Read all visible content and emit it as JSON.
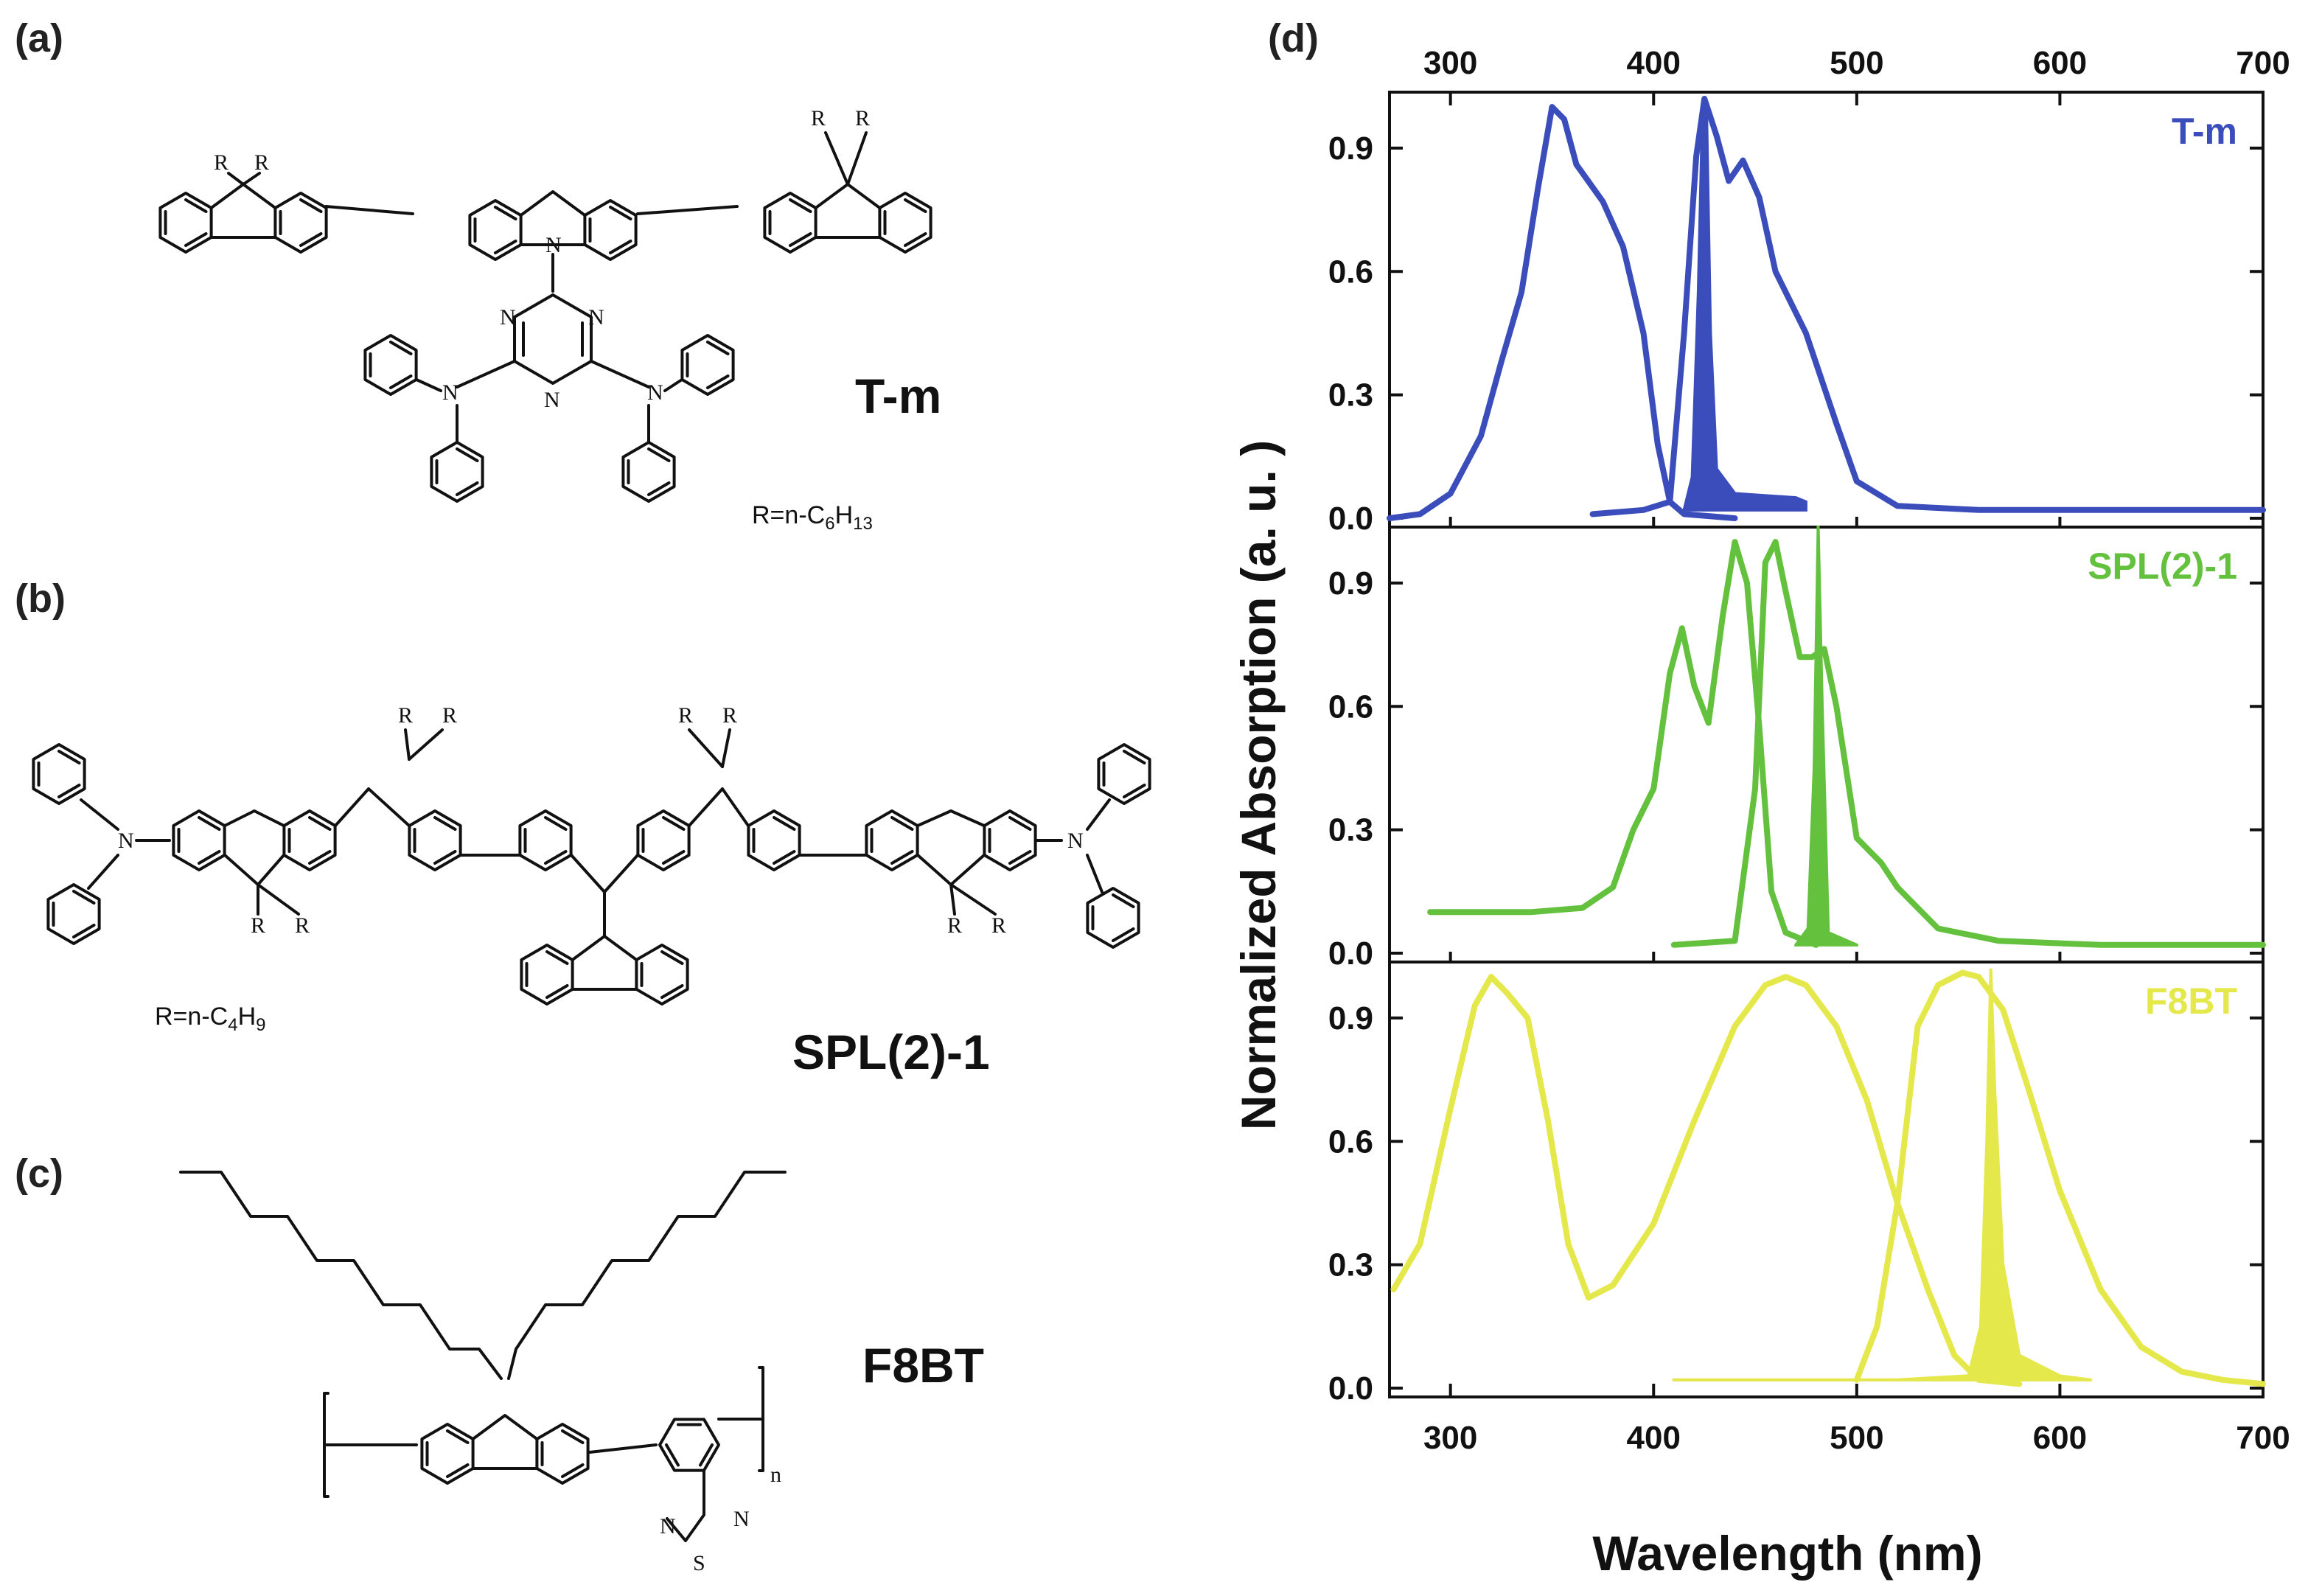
{
  "panels": {
    "a": {
      "label": "(a)",
      "name": "T-m",
      "r_note": {
        "pre": "R=n-C",
        "sub": "6",
        "mid": "H",
        "sub2": "13"
      }
    },
    "b": {
      "label": "(b)",
      "name": "SPL(2)-1",
      "r_note": {
        "pre": "R=n-C",
        "sub": "4",
        "mid": "H",
        "sub2": "9"
      }
    },
    "c": {
      "label": "(c)",
      "name": "F8BT"
    },
    "d": {
      "label": "(d)"
    }
  },
  "atoms": {
    "R": "R",
    "N": "N",
    "S": "S",
    "n": "n"
  },
  "chart_data": {
    "type": "line",
    "xlabel": "Wavelength (nm)",
    "ylabel": "Normalized Absorption (a. u. )",
    "xlim": [
      270,
      700
    ],
    "xticks": [
      300,
      400,
      500,
      600,
      700
    ],
    "ylim": [
      0,
      0.95
    ],
    "yticks": [
      0.0,
      0.3,
      0.6,
      0.9
    ],
    "ytick_labels": [
      "0.0",
      "0.3",
      "0.6",
      "0.9"
    ],
    "subplots": [
      {
        "label": "T-m",
        "color": "#3a4dbb",
        "series": [
          {
            "kind": "absorption",
            "points": [
              [
                270,
                0.0
              ],
              [
                285,
                0.01
              ],
              [
                300,
                0.06
              ],
              [
                315,
                0.2
              ],
              [
                325,
                0.38
              ],
              [
                335,
                0.55
              ],
              [
                343,
                0.8
              ],
              [
                350,
                1.0
              ],
              [
                356,
                0.97
              ],
              [
                362,
                0.86
              ],
              [
                375,
                0.77
              ],
              [
                385,
                0.66
              ],
              [
                395,
                0.45
              ],
              [
                402,
                0.18
              ],
              [
                408,
                0.04
              ],
              [
                415,
                0.01
              ],
              [
                440,
                0.0
              ]
            ]
          },
          {
            "kind": "emission",
            "points": [
              [
                370,
                0.01
              ],
              [
                395,
                0.02
              ],
              [
                408,
                0.04
              ],
              [
                415,
                0.45
              ],
              [
                421,
                0.88
              ],
              [
                425,
                1.02
              ],
              [
                431,
                0.93
              ],
              [
                437,
                0.82
              ],
              [
                444,
                0.87
              ],
              [
                452,
                0.78
              ],
              [
                460,
                0.6
              ],
              [
                475,
                0.45
              ],
              [
                490,
                0.23
              ],
              [
                500,
                0.09
              ],
              [
                520,
                0.03
              ],
              [
                560,
                0.02
              ],
              [
                700,
                0.02
              ]
            ]
          },
          {
            "kind": "laser",
            "points": [
              [
                415,
                0.02
              ],
              [
                419,
                0.1
              ],
              [
                422,
                0.55
              ],
              [
                424,
                0.98
              ],
              [
                426,
                1.01
              ],
              [
                428,
                0.45
              ],
              [
                431,
                0.12
              ],
              [
                440,
                0.06
              ],
              [
                470,
                0.05
              ],
              [
                475,
                0.04
              ]
            ]
          }
        ]
      },
      {
        "label": "SPL(2)-1",
        "color": "#63c13e",
        "series": [
          {
            "kind": "absorption",
            "points": [
              [
                290,
                0.1
              ],
              [
                340,
                0.1
              ],
              [
                365,
                0.11
              ],
              [
                380,
                0.16
              ],
              [
                390,
                0.3
              ],
              [
                400,
                0.4
              ],
              [
                408,
                0.68
              ],
              [
                414,
                0.79
              ],
              [
                420,
                0.65
              ],
              [
                427,
                0.56
              ],
              [
                434,
                0.82
              ],
              [
                440,
                1.0
              ],
              [
                446,
                0.9
              ],
              [
                452,
                0.55
              ],
              [
                458,
                0.15
              ],
              [
                465,
                0.05
              ],
              [
                480,
                0.02
              ]
            ]
          },
          {
            "kind": "emission",
            "points": [
              [
                410,
                0.02
              ],
              [
                440,
                0.03
              ],
              [
                450,
                0.4
              ],
              [
                455,
                0.95
              ],
              [
                460,
                1.0
              ],
              [
                465,
                0.88
              ],
              [
                472,
                0.72
              ],
              [
                478,
                0.72
              ],
              [
                484,
                0.74
              ],
              [
                490,
                0.6
              ],
              [
                500,
                0.28
              ],
              [
                512,
                0.22
              ],
              [
                520,
                0.16
              ],
              [
                540,
                0.06
              ],
              [
                570,
                0.03
              ],
              [
                620,
                0.02
              ],
              [
                700,
                0.02
              ]
            ]
          },
          {
            "kind": "laser",
            "points": [
              [
                470,
                0.02
              ],
              [
                476,
                0.06
              ],
              [
                479,
                0.45
              ],
              [
                481,
                1.04
              ],
              [
                483,
                0.6
              ],
              [
                486,
                0.05
              ],
              [
                500,
                0.02
              ]
            ]
          }
        ]
      },
      {
        "label": "F8BT",
        "color": "#e4e84a",
        "series": [
          {
            "kind": "absorption",
            "points": [
              [
                272,
                0.24
              ],
              [
                285,
                0.35
              ],
              [
                300,
                0.68
              ],
              [
                312,
                0.93
              ],
              [
                320,
                1.0
              ],
              [
                328,
                0.96
              ],
              [
                338,
                0.9
              ],
              [
                348,
                0.65
              ],
              [
                358,
                0.35
              ],
              [
                368,
                0.22
              ],
              [
                380,
                0.25
              ],
              [
                400,
                0.4
              ],
              [
                420,
                0.65
              ],
              [
                440,
                0.88
              ],
              [
                455,
                0.98
              ],
              [
                465,
                1.0
              ],
              [
                475,
                0.98
              ],
              [
                490,
                0.88
              ],
              [
                505,
                0.7
              ],
              [
                520,
                0.45
              ],
              [
                535,
                0.24
              ],
              [
                548,
                0.08
              ],
              [
                560,
                0.02
              ],
              [
                580,
                0.01
              ]
            ]
          },
          {
            "kind": "emission",
            "points": [
              [
                500,
                0.02
              ],
              [
                510,
                0.15
              ],
              [
                520,
                0.45
              ],
              [
                530,
                0.88
              ],
              [
                540,
                0.98
              ],
              [
                552,
                1.01
              ],
              [
                560,
                1.0
              ],
              [
                572,
                0.92
              ],
              [
                585,
                0.72
              ],
              [
                600,
                0.48
              ],
              [
                620,
                0.24
              ],
              [
                640,
                0.1
              ],
              [
                660,
                0.04
              ],
              [
                680,
                0.02
              ],
              [
                700,
                0.01
              ]
            ]
          },
          {
            "kind": "laser",
            "points": [
              [
                410,
                0.02
              ],
              [
                520,
                0.02
              ],
              [
                555,
                0.03
              ],
              [
                561,
                0.15
              ],
              [
                564,
                0.6
              ],
              [
                566,
                1.02
              ],
              [
                568,
                0.72
              ],
              [
                572,
                0.3
              ],
              [
                580,
                0.08
              ],
              [
                600,
                0.03
              ],
              [
                615,
                0.02
              ]
            ]
          }
        ]
      }
    ]
  }
}
